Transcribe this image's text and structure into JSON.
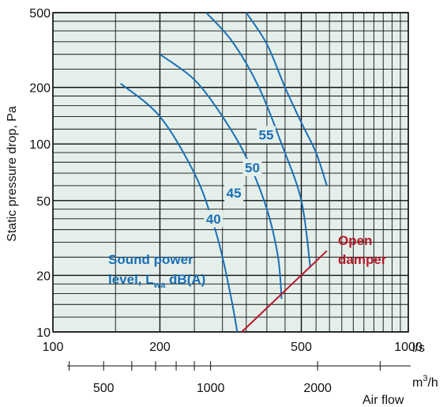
{
  "chart_data": {
    "type": "line",
    "ylabel": "Static pressure drop, Pa",
    "x_scale": "log",
    "y_scale": "log",
    "xlim": [
      100,
      1000
    ],
    "ylim": [
      10,
      500
    ],
    "grid": true,
    "x_ticks": [
      {
        "value": 100,
        "label": "100"
      },
      {
        "value": 200,
        "label": "200"
      },
      {
        "value": 500,
        "label": "500"
      },
      {
        "value": 1000,
        "label": "1000"
      }
    ],
    "x_unit_label": "l/s",
    "y_ticks": [
      {
        "value": 10,
        "label": "10"
      },
      {
        "value": 20,
        "label": "20"
      },
      {
        "value": 50,
        "label": "50"
      },
      {
        "value": 100,
        "label": "100"
      },
      {
        "value": 200,
        "label": "200"
      },
      {
        "value": 500,
        "label": "500"
      }
    ],
    "secondary_x_axis": {
      "unit_label_base": "m",
      "unit_label_sup": "3",
      "unit_label_tail": "/h",
      "ticks": [
        {
          "value": 500,
          "label": "500"
        },
        {
          "value": 1000,
          "label": "1000"
        },
        {
          "value": 2000,
          "label": "2000"
        }
      ],
      "minor_ticks": [
        400,
        600,
        700,
        800,
        900,
        3000
      ],
      "title": "Air flow"
    },
    "series": [
      {
        "name": "40",
        "color": "#1a6fb5",
        "x": [
          155,
          200,
          250,
          280,
          300,
          320,
          330
        ],
        "y": [
          210,
          140,
          70,
          40,
          25,
          14,
          10
        ]
      },
      {
        "name": "45",
        "color": "#1a6fb5",
        "x": [
          200,
          250,
          300,
          350,
          400,
          430,
          440
        ],
        "y": [
          300,
          220,
          140,
          85,
          45,
          25,
          15
        ]
      },
      {
        "name": "50",
        "color": "#1a6fb5",
        "x": [
          270,
          320,
          380,
          440,
          500,
          530
        ],
        "y": [
          500,
          350,
          200,
          100,
          50,
          22
        ]
      },
      {
        "name": "55",
        "color": "#1a6fb5",
        "x": [
          350,
          400,
          450,
          500,
          550,
          590
        ],
        "y": [
          500,
          340,
          200,
          130,
          90,
          60
        ]
      },
      {
        "name": "Open damper",
        "color": "#b5192a",
        "x": [
          340,
          590
        ],
        "y": [
          10,
          27
        ]
      }
    ],
    "annotations": {
      "legend_line1": "Sound power",
      "legend_line2_pre": "level, L",
      "legend_line2_sub": "wa",
      "legend_line2_post": " dB(A)",
      "damper_line1": "Open",
      "damper_line2": "damper"
    },
    "colors": {
      "plot_background": "#e4efea",
      "grid": "#111111",
      "curve": "#1a6fb5",
      "damper": "#b5192a"
    }
  }
}
